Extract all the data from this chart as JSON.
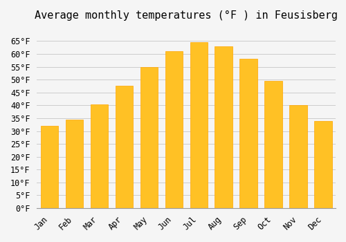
{
  "title": "Average monthly temperatures (°F ) in Feusisberg",
  "months": [
    "Jan",
    "Feb",
    "Mar",
    "Apr",
    "May",
    "Jun",
    "Jul",
    "Aug",
    "Sep",
    "Oct",
    "Nov",
    "Dec"
  ],
  "values": [
    32,
    34.5,
    40.5,
    47.5,
    55,
    61,
    64.5,
    63,
    58,
    49.5,
    40,
    34
  ],
  "bar_color": "#FFC125",
  "bar_edge_color": "#FFA500",
  "background_color": "#f5f5f5",
  "ylim": [
    0,
    70
  ],
  "yticks": [
    0,
    5,
    10,
    15,
    20,
    25,
    30,
    35,
    40,
    45,
    50,
    55,
    60,
    65
  ],
  "title_fontsize": 11,
  "tick_fontsize": 8.5,
  "grid_color": "#cccccc",
  "font_family": "monospace"
}
